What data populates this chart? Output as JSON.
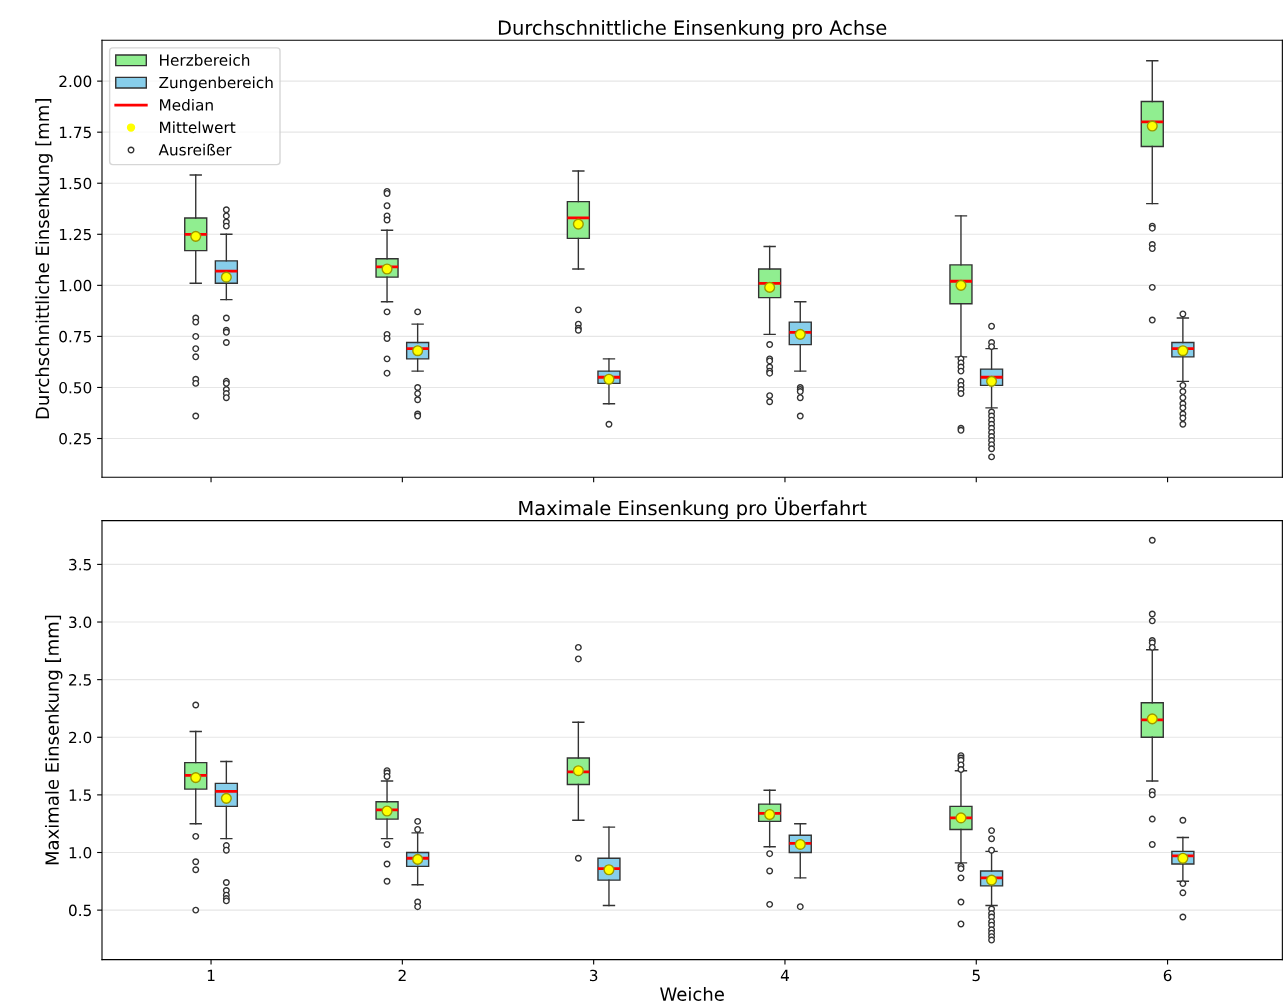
{
  "chart_data": [
    {
      "type": "box",
      "title": "Durchschnittliche Einsenkung pro Achse",
      "ylabel": "Durchschnittliche Einsenkung [mm]",
      "categories": [
        "1",
        "2",
        "3",
        "4",
        "5",
        "6"
      ],
      "ylim": [
        0.06,
        2.2
      ],
      "yticks": [
        {
          "value": 0.25,
          "label": "0.25"
        },
        {
          "value": 0.5,
          "label": "0.50"
        },
        {
          "value": 0.75,
          "label": "0.75"
        },
        {
          "value": 1.0,
          "label": "1.00"
        },
        {
          "value": 1.25,
          "label": "1.25"
        },
        {
          "value": 1.5,
          "label": "1.50"
        },
        {
          "value": 1.75,
          "label": "1.75"
        },
        {
          "value": 2.0,
          "label": "2.00"
        }
      ],
      "grid": "y",
      "legend": "top left",
      "tick_labels": "y",
      "series": [
        {
          "name": "Herzbereich",
          "color": "#90ee90",
          "boxes": [
            {
              "low": 1.01,
              "q1": 1.17,
              "median": 1.25,
              "q3": 1.33,
              "high": 1.54,
              "mean": 1.24,
              "outliers": [
                0.84,
                0.82,
                0.75,
                0.69,
                0.65,
                0.54,
                0.52,
                0.36
              ]
            },
            {
              "low": 0.92,
              "q1": 1.04,
              "median": 1.09,
              "q3": 1.13,
              "high": 1.27,
              "mean": 1.08,
              "outliers": [
                1.46,
                1.45,
                1.39,
                1.34,
                1.32,
                0.87,
                0.76,
                0.74,
                0.64,
                0.57
              ]
            },
            {
              "low": 1.08,
              "q1": 1.23,
              "median": 1.33,
              "q3": 1.41,
              "high": 1.56,
              "mean": 1.3,
              "outliers": [
                0.88,
                0.81,
                0.79,
                0.78
              ]
            },
            {
              "low": 0.76,
              "q1": 0.94,
              "median": 1.01,
              "q3": 1.08,
              "high": 1.19,
              "mean": 0.99,
              "outliers": [
                0.71,
                0.64,
                0.63,
                0.6,
                0.58,
                0.57,
                0.46,
                0.43
              ]
            },
            {
              "low": 0.65,
              "q1": 0.91,
              "median": 1.02,
              "q3": 1.1,
              "high": 1.34,
              "mean": 1.0,
              "outliers": [
                0.64,
                0.62,
                0.6,
                0.58,
                0.53,
                0.51,
                0.49,
                0.47,
                0.3,
                0.29
              ]
            },
            {
              "low": 1.4,
              "q1": 1.68,
              "median": 1.8,
              "q3": 1.9,
              "high": 2.1,
              "mean": 1.78,
              "outliers": [
                1.29,
                1.28,
                1.2,
                1.18,
                0.99,
                0.83
              ]
            }
          ]
        },
        {
          "name": "Zungenbereich",
          "color": "#87ceeb",
          "boxes": [
            {
              "low": 0.93,
              "q1": 1.01,
              "median": 1.07,
              "q3": 1.12,
              "high": 1.25,
              "mean": 1.04,
              "outliers": [
                1.37,
                1.34,
                1.31,
                1.29,
                0.84,
                0.78,
                0.77,
                0.72,
                0.53,
                0.52,
                0.49,
                0.47,
                0.45
              ]
            },
            {
              "low": 0.58,
              "q1": 0.64,
              "median": 0.69,
              "q3": 0.72,
              "high": 0.81,
              "mean": 0.68,
              "outliers": [
                0.87,
                0.5,
                0.47,
                0.44,
                0.37,
                0.36
              ]
            },
            {
              "low": 0.42,
              "q1": 0.52,
              "median": 0.55,
              "q3": 0.58,
              "high": 0.64,
              "mean": 0.54,
              "outliers": [
                0.32
              ]
            },
            {
              "low": 0.58,
              "q1": 0.71,
              "median": 0.77,
              "q3": 0.82,
              "high": 0.92,
              "mean": 0.76,
              "outliers": [
                0.5,
                0.49,
                0.48,
                0.45,
                0.36
              ]
            },
            {
              "low": 0.4,
              "q1": 0.51,
              "median": 0.55,
              "q3": 0.59,
              "high": 0.69,
              "mean": 0.53,
              "outliers": [
                0.8,
                0.72,
                0.7,
                0.38,
                0.36,
                0.34,
                0.32,
                0.3,
                0.28,
                0.26,
                0.24,
                0.22,
                0.2,
                0.16
              ]
            },
            {
              "low": 0.53,
              "q1": 0.65,
              "median": 0.69,
              "q3": 0.72,
              "high": 0.84,
              "mean": 0.68,
              "outliers": [
                0.86,
                0.51,
                0.48,
                0.45,
                0.42,
                0.4,
                0.37,
                0.35,
                0.32
              ]
            }
          ]
        },
        {
          "name": "Median",
          "type": "line",
          "color": "#ff0000",
          "values": [
            null,
            null,
            null,
            null,
            null,
            null
          ]
        },
        {
          "name": "Mittelwert",
          "type": "scatter",
          "color": "#ffff00",
          "marker": "circle",
          "values": [
            null,
            null,
            null,
            null,
            null,
            null
          ]
        },
        {
          "name": "Ausreißer",
          "type": "scatter",
          "color": "#ffffff",
          "marker": "circle",
          "values": [
            null,
            null,
            null,
            null,
            null,
            null
          ]
        }
      ]
    },
    {
      "type": "box",
      "title": "Maximale Einsenkung pro Überfahrt",
      "xlabel": "Weiche",
      "ylabel": "Maximale Einsenkung [mm]",
      "categories": [
        "1",
        "2",
        "3",
        "4",
        "5",
        "6"
      ],
      "ylim": [
        0.07,
        3.88
      ],
      "yticks": [
        0.5,
        {
          "value": 1,
          "label": "1.0"
        },
        1.5,
        {
          "value": 2,
          "label": "2.0"
        },
        2.5,
        {
          "value": 3,
          "label": "3.0"
        },
        3.5
      ],
      "grid": "y",
      "series": [
        {
          "color": "#90ee90",
          "boxes": [
            {
              "low": 1.25,
              "q1": 1.55,
              "median": 1.67,
              "q3": 1.78,
              "high": 2.05,
              "mean": 1.65,
              "outliers": [
                2.28,
                1.14,
                0.92,
                0.85,
                0.5
              ]
            },
            {
              "low": 1.12,
              "q1": 1.29,
              "median": 1.37,
              "q3": 1.44,
              "high": 1.62,
              "mean": 1.36,
              "outliers": [
                1.71,
                1.69,
                1.66,
                1.07,
                0.9,
                0.75
              ]
            },
            {
              "low": 1.28,
              "q1": 1.59,
              "median": 1.7,
              "q3": 1.82,
              "high": 2.13,
              "mean": 1.71,
              "outliers": [
                2.78,
                2.68,
                0.95
              ]
            },
            {
              "low": 1.05,
              "q1": 1.27,
              "median": 1.34,
              "q3": 1.42,
              "high": 1.54,
              "mean": 1.33,
              "outliers": [
                0.99,
                0.84,
                0.55
              ]
            },
            {
              "low": 0.91,
              "q1": 1.2,
              "median": 1.3,
              "q3": 1.4,
              "high": 1.71,
              "mean": 1.3,
              "outliers": [
                1.84,
                1.82,
                1.8,
                1.76,
                1.72,
                0.88,
                0.86,
                0.78,
                0.57,
                0.38
              ]
            },
            {
              "low": 1.62,
              "q1": 2.0,
              "median": 2.15,
              "q3": 2.3,
              "high": 2.76,
              "mean": 2.16,
              "outliers": [
                3.71,
                3.07,
                3.01,
                2.84,
                2.82,
                2.78,
                1.53,
                1.5,
                1.29,
                1.07
              ]
            }
          ]
        },
        {
          "color": "#87ceeb",
          "boxes": [
            {
              "low": 1.12,
              "q1": 1.4,
              "median": 1.53,
              "q3": 1.6,
              "high": 1.79,
              "mean": 1.47,
              "outliers": [
                1.06,
                1.02,
                0.74,
                0.67,
                0.63,
                0.6,
                0.58
              ]
            },
            {
              "low": 0.72,
              "q1": 0.88,
              "median": 0.95,
              "q3": 1.0,
              "high": 1.17,
              "mean": 0.94,
              "outliers": [
                1.27,
                1.2,
                0.57,
                0.53
              ]
            },
            {
              "low": 0.54,
              "q1": 0.76,
              "median": 0.86,
              "q3": 0.95,
              "high": 1.22,
              "mean": 0.85
            },
            {
              "low": 0.78,
              "q1": 1.0,
              "median": 1.08,
              "q3": 1.15,
              "high": 1.25,
              "mean": 1.07,
              "outliers": [
                0.53
              ]
            },
            {
              "low": 0.54,
              "q1": 0.71,
              "median": 0.78,
              "q3": 0.84,
              "high": 1.01,
              "mean": 0.76,
              "outliers": [
                1.19,
                1.12,
                1.02,
                0.51,
                0.47,
                0.44,
                0.4,
                0.37,
                0.33,
                0.3,
                0.27,
                0.24
              ]
            },
            {
              "low": 0.75,
              "q1": 0.9,
              "median": 0.97,
              "q3": 1.01,
              "high": 1.13,
              "mean": 0.95,
              "outliers": [
                1.28,
                0.73,
                0.65,
                0.44
              ]
            }
          ]
        },
        {
          "type": "line",
          "color": "#ff0000",
          "values": [
            null,
            null,
            null,
            null,
            null,
            null
          ]
        },
        {
          "type": "scatter",
          "color": "#ffff00",
          "marker": "circle",
          "values": [
            null,
            null,
            null,
            null,
            null,
            null
          ]
        },
        {
          "type": "scatter",
          "color": "#ffffff",
          "marker": "circle",
          "values": [
            null,
            null,
            null,
            null,
            null,
            null
          ]
        }
      ]
    }
  ]
}
